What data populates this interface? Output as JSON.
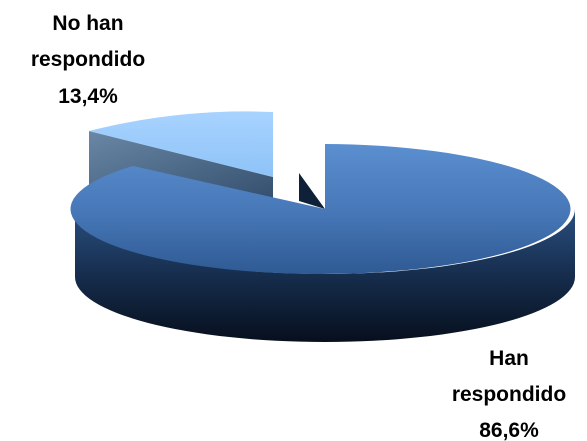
{
  "chart_data": {
    "type": "pie",
    "title": "",
    "legend": "none",
    "style": "3d-exploded",
    "slices": [
      {
        "name_lines": [
          "No han",
          "respondido"
        ],
        "pct_label": "13,4%",
        "value": 13.4,
        "color": "#9fcdfb"
      },
      {
        "name_lines": [
          "Han",
          "respondido"
        ],
        "pct_label": "86,6%",
        "value": 86.6,
        "color": "#4a7fc0"
      }
    ]
  }
}
